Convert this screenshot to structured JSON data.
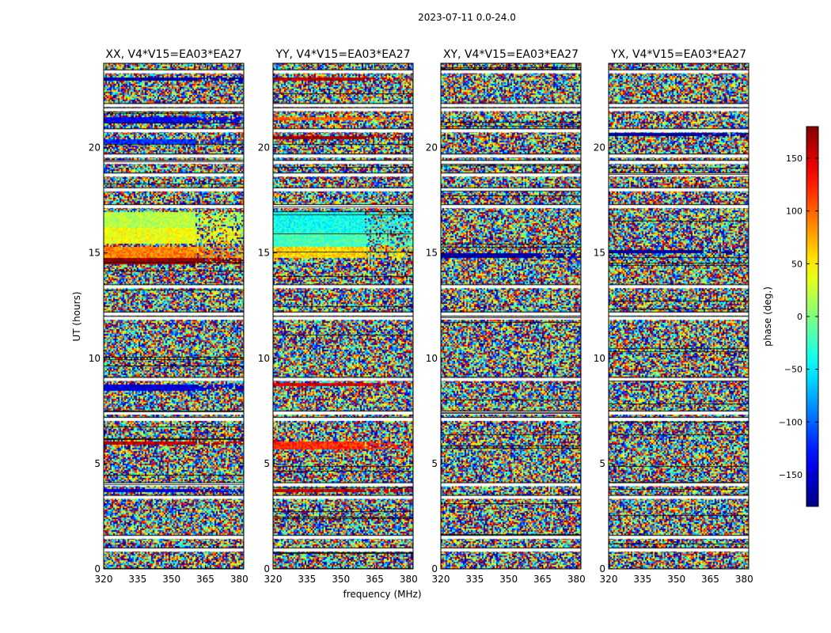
{
  "suptitle": "2023-07-11 0.0-24.0",
  "xlabel": "frequency (MHz)",
  "ylabel": "UT (hours)",
  "colorbar": {
    "label": "phase (deg.)",
    "range": [
      -180,
      180
    ],
    "ticks": [
      150,
      100,
      50,
      0,
      -50,
      -100,
      -150
    ],
    "tick_labels": [
      "150",
      "100",
      "50",
      "0",
      "−50",
      "−100",
      "−150"
    ],
    "colormap": "jet"
  },
  "chart_data": {
    "type": "heatmap",
    "xlim": [
      320,
      382
    ],
    "ylim": [
      0,
      24
    ],
    "xticks": [
      320,
      335,
      350,
      365,
      380
    ],
    "yticks": [
      0,
      5,
      10,
      15,
      20
    ],
    "panels": [
      {
        "title": "XX, V4*V15=EA03*EA27",
        "coherent_bands": [
          {
            "t0": 23.2,
            "t1": 23.35,
            "phase": -170
          },
          {
            "t0": 21.2,
            "t1": 21.45,
            "phase": -140
          },
          {
            "t0": 20.2,
            "t1": 20.4,
            "phase": -120
          },
          {
            "t0": 16.2,
            "t1": 17.0,
            "phase": 20
          },
          {
            "t0": 15.5,
            "t1": 16.2,
            "phase": 40
          },
          {
            "t0": 14.8,
            "t1": 15.3,
            "phase": 90
          },
          {
            "t0": 14.5,
            "t1": 14.8,
            "phase": 175
          },
          {
            "t0": 8.5,
            "t1": 8.8,
            "phase": -150
          },
          {
            "t0": 5.9,
            "t1": 6.1,
            "phase": 160
          },
          {
            "t0": 3.7,
            "t1": 3.85,
            "phase": -150
          }
        ]
      },
      {
        "title": "YY, V4*V15=EA03*EA27",
        "coherent_bands": [
          {
            "t0": 23.2,
            "t1": 23.35,
            "phase": 160
          },
          {
            "t0": 21.3,
            "t1": 21.5,
            "phase": 100
          },
          {
            "t0": 20.4,
            "t1": 20.6,
            "phase": 170
          },
          {
            "t0": 16.0,
            "t1": 17.0,
            "phase": -40
          },
          {
            "t0": 15.3,
            "t1": 16.0,
            "phase": -20
          },
          {
            "t0": 14.8,
            "t1": 15.3,
            "phase": 60
          },
          {
            "t0": 8.7,
            "t1": 8.9,
            "phase": 150
          },
          {
            "t0": 5.7,
            "t1": 6.1,
            "phase": 120
          },
          {
            "t0": 3.7,
            "t1": 3.85,
            "phase": 160
          }
        ]
      },
      {
        "title": "XY, V4*V15=EA03*EA27",
        "coherent_bands": [
          {
            "t0": 14.8,
            "t1": 15.0,
            "phase": -170
          }
        ]
      },
      {
        "title": "YX, V4*V15=EA03*EA27",
        "coherent_bands": [
          {
            "t0": 20.6,
            "t1": 20.75,
            "phase": -170
          },
          {
            "t0": 15.0,
            "t1": 15.2,
            "phase": -170
          }
        ]
      }
    ],
    "flagged_times": [
      23.6,
      22.0,
      21.8,
      20.8,
      19.6,
      19.3,
      18.7,
      18.0,
      17.2,
      13.4,
      12.1,
      11.9,
      9.0,
      7.4,
      7.1,
      4.0,
      3.4,
      1.5,
      0.9
    ]
  }
}
